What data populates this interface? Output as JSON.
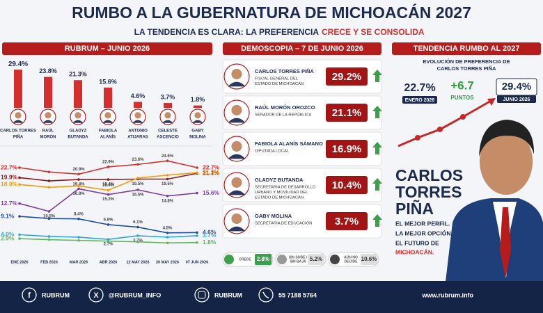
{
  "title": "RUMBO A LA GUBERNATURA DE MICHOACÁN 2027",
  "subtitle": "LA TENDENCIA ES CLARA: LA PREFERENCIA",
  "subtitle_highlight": "CRECE Y SE CONSOLIDA",
  "chart_data": [
    {
      "type": "bar",
      "title": "RUBRUM – JUNIO 2026",
      "categories": [
        [
          "CARLOS TORRES",
          "PIÑA"
        ],
        [
          "RAÚL",
          "MORÓN"
        ],
        [
          "GLADYZ",
          "BUTANDA"
        ],
        [
          "FABIOLA",
          "ALANÍS"
        ],
        [
          "ANTONIO",
          "ATIJARAS"
        ],
        [
          "CELESTE",
          "ASCENCIO"
        ],
        [
          "GABY",
          "MOLINA"
        ]
      ],
      "values": [
        29.4,
        23.8,
        21.3,
        15.6,
        4.6,
        3.7,
        1.8
      ],
      "value_labels": [
        "29.4%",
        "23.8%",
        "21.3%",
        "15.6%",
        "4.6%",
        "3.7%",
        "1.8%"
      ],
      "color": "#d32f2f",
      "ylim": [
        0,
        30
      ]
    },
    {
      "type": "line",
      "categories": [
        "ENE 2026",
        "FEB 2026",
        "MAR 2026",
        "ABR 2026",
        "12 MAY 2026",
        "26 MAY 2026",
        "07 JUN 2026"
      ],
      "ylim": [
        0,
        26
      ],
      "series": [
        {
          "color": "#d32f2f",
          "values": [
            22.7,
            21.5,
            20.9,
            22.9,
            23.6,
            24.6,
            22.7
          ],
          "value_labels": [
            "22.7%",
            null,
            "20.9%",
            "22.9%",
            "23.6%",
            "24.6%",
            "22.7%"
          ]
        },
        {
          "color": "#8b1a1a",
          "values": [
            19.9,
            19.0,
            19.4,
            19.4,
            19.5,
            19.5,
            21.1
          ],
          "value_labels": [
            "19.9%",
            null,
            "19.4%",
            "19.4%",
            "19.5%",
            "19.5%",
            "21.1%"
          ]
        },
        {
          "color": "#f39c12",
          "values": [
            18.0,
            17.2,
            17.6,
            16.4,
            19.8,
            20.6,
            21.3
          ],
          "value_labels": [
            "18.0%",
            null,
            null,
            "16.4%",
            null,
            null,
            "21.3%"
          ]
        },
        {
          "color": "#7b3fa0",
          "values": [
            12.7,
            10.5,
            16.8,
            15.2,
            16.5,
            14.8,
            15.6
          ],
          "value_labels": [
            "12.7%",
            "10.5%",
            "16.8%",
            "15.2%",
            "16.5%",
            "14.8%",
            "15.6%"
          ]
        },
        {
          "color": "#1f4e9e",
          "values": [
            9.1,
            8.5,
            8.4,
            6.8,
            6.1,
            4.5,
            4.6
          ],
          "value_labels": [
            "9.1%",
            null,
            "8.4%",
            "6.8%",
            "6.1%",
            "4.5%",
            "4.6%"
          ]
        },
        {
          "color": "#29a8d8",
          "values": [
            4.0,
            3.5,
            3.3,
            2.7,
            3.7,
            3.3,
            3.7
          ],
          "value_labels": [
            "4.0%",
            null,
            null,
            "2.7%",
            "3.7%",
            null,
            "3.7%"
          ]
        },
        {
          "color": "#5cb85c",
          "values": [
            2.9,
            2.6,
            2.4,
            2.2,
            2.0,
            1.7,
            1.8
          ],
          "value_labels": [
            "2.9%",
            null,
            null,
            null,
            null,
            null,
            "1.8%"
          ]
        }
      ]
    }
  ],
  "demoscopia": {
    "title": "DEMOSCOPIA – 7 DE JUNIO 2026",
    "items": [
      {
        "name": "CARLOS TORRES PIÑA",
        "role": [
          "FISCAL GENERAL DEL",
          "ESTADO DE MICHOACÁN"
        ],
        "value": "29.2%"
      },
      {
        "name": "RAÚL MORÓN OROZCO",
        "role": [
          "SENADOR DE LA REPÚBLICA"
        ],
        "value": "21.1%"
      },
      {
        "name": "FABIOLA ALANÍS SÁMANO",
        "role": [
          "DIPUTADA LOCAL"
        ],
        "value": "16.9%"
      },
      {
        "name": "GLADYZ BUTANDA",
        "role": [
          "SECRETARIA DE DESARROLLO",
          "URBANO Y MOVILIDAD DEL",
          "ESTADO DE MICHOACÁN"
        ],
        "value": "10.4%"
      },
      {
        "name": "GABY MOLINA",
        "role": [
          "SECRETARIA DE EDUCACIÓN"
        ],
        "value": "3.7%"
      }
    ],
    "legend": [
      {
        "label": [
          "CRECE"
        ],
        "value": "2.8%"
      },
      {
        "label": [
          "SIN SUBE /",
          "SIN BAJA"
        ],
        "value": "5.2%"
      },
      {
        "label": [
          "AÚN NO",
          "DECIDE"
        ],
        "value": "10.6%"
      }
    ]
  },
  "trend": {
    "title": "TENDENCIA RUMBO AL 2027",
    "subtitle": [
      "EVOLUCIÓN DE PREFERENCIA DE",
      "CARLOS TORRES PIÑA"
    ],
    "start_value": "22.7%",
    "start_label": "ENERO 2026",
    "delta": "+6.7",
    "delta_label": "PUNTOS",
    "end_value": "29.4%",
    "end_label": "JUNIO 2026",
    "name": [
      "CARLOS",
      "TORRES",
      "PIÑA"
    ],
    "slogan": [
      "EL MEJOR PERFIL.",
      "LA MEJOR OPCIÓN.",
      "EL FUTURO DE"
    ],
    "slogan_highlight": "MICHOACÁN."
  },
  "footer": {
    "facebook": "RUBRUM",
    "x": "@RUBRUM_INFO",
    "instagram": "RUBRUM",
    "whatsapp": "55 7188 5764",
    "web": "www.rubrum.info"
  }
}
